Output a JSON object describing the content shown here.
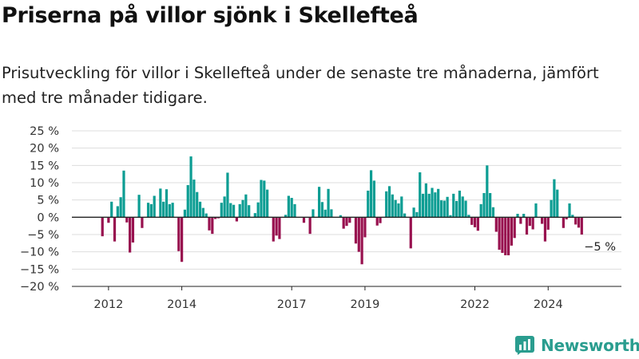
{
  "title": "Priserna på villor sjönk i Skellefteå",
  "subtitle": "Prisutveckling för villor i Skellefteå under de senaste tre månaderna, jämfört med tre månader tidigare.",
  "brand": {
    "name": "Newsworthy",
    "icon": "newsworthy-chart-logo-icon",
    "color": "#2a9d8f"
  },
  "colors": {
    "positive": "#0c9d93",
    "negative": "#98114f",
    "grid": "#dddddd",
    "axis": "#222222",
    "text": "#333333"
  },
  "chart_data": {
    "type": "bar",
    "title": "Priserna på villor sjönk i Skellefteå",
    "xlabel": "",
    "ylabel": "",
    "ylim": [
      -20,
      25
    ],
    "yticks": [
      -20,
      -15,
      -10,
      -5,
      0,
      5,
      10,
      15,
      20,
      25
    ],
    "ytick_labels": [
      "−20 %",
      "−15 %",
      "−10 %",
      "−5 %",
      "0 %",
      "5 %",
      "10 %",
      "15 %",
      "20 %",
      "25 %"
    ],
    "x_unit": "month",
    "x_start": "2011-11",
    "x_range": [
      "2011-01",
      "2026-01"
    ],
    "xticks": [
      "2012-01",
      "2014-01",
      "2017-01",
      "2019-01",
      "2022-01",
      "2024-01"
    ],
    "xtick_labels": [
      "2012",
      "2014",
      "2017",
      "2019",
      "2022",
      "2024"
    ],
    "grid": true,
    "annotation": {
      "text": "−5 %",
      "x": "2025-06",
      "y": -5
    },
    "values": [
      -5.5,
      0,
      -1.6,
      4.5,
      -7,
      3.2,
      5.8,
      13.5,
      -1.5,
      -10.2,
      -7.3,
      0,
      6.5,
      -3.1,
      0,
      4.2,
      3.8,
      6.2,
      0,
      8.3,
      4.5,
      8.1,
      3.8,
      4.2,
      0,
      -9.8,
      -12.9,
      2.2,
      9.3,
      17.6,
      10.9,
      7.3,
      4.5,
      2.7,
      1.1,
      -3.8,
      -4.8,
      -0.5,
      -0.3,
      4.2,
      6,
      12.9,
      4.1,
      3.6,
      -1.2,
      3.8,
      5,
      6.6,
      3.5,
      0,
      1.2,
      4.3,
      10.8,
      10.6,
      8,
      0,
      -7,
      -5.3,
      -6.3,
      0,
      0.7,
      6.2,
      5.6,
      3.8,
      0,
      0,
      -1.6,
      0,
      -4.8,
      2.3,
      0,
      8.8,
      4.4,
      2.2,
      8.2,
      2.3,
      0,
      0,
      0.6,
      -3.3,
      -2.5,
      -1.6,
      0,
      -7.6,
      -10,
      -13.6,
      -5.8,
      7.7,
      13.6,
      10.6,
      -2.4,
      -1.7,
      0,
      7.5,
      9,
      6.6,
      5,
      4,
      6,
      1.1,
      0,
      -9,
      2.8,
      1.5,
      13,
      6.8,
      9.8,
      6.8,
      8.5,
      7.2,
      8.2,
      4.9,
      4.8,
      5.9,
      0.6,
      6.8,
      4.7,
      7.7,
      6,
      4.8,
      0.7,
      -2.2,
      -2.9,
      -3.9,
      3.8,
      7,
      15,
      7,
      2.9,
      -4.2,
      -9.4,
      -10.3,
      -11,
      -11,
      -8.2,
      -6,
      1,
      -1.9,
      1,
      -5,
      -2.5,
      -3.5,
      4,
      0,
      -1.9,
      -7,
      -3.6,
      5,
      11,
      8,
      0,
      -3.1,
      -0.6,
      4,
      0.7,
      -2.1,
      -3,
      -5
    ]
  }
}
